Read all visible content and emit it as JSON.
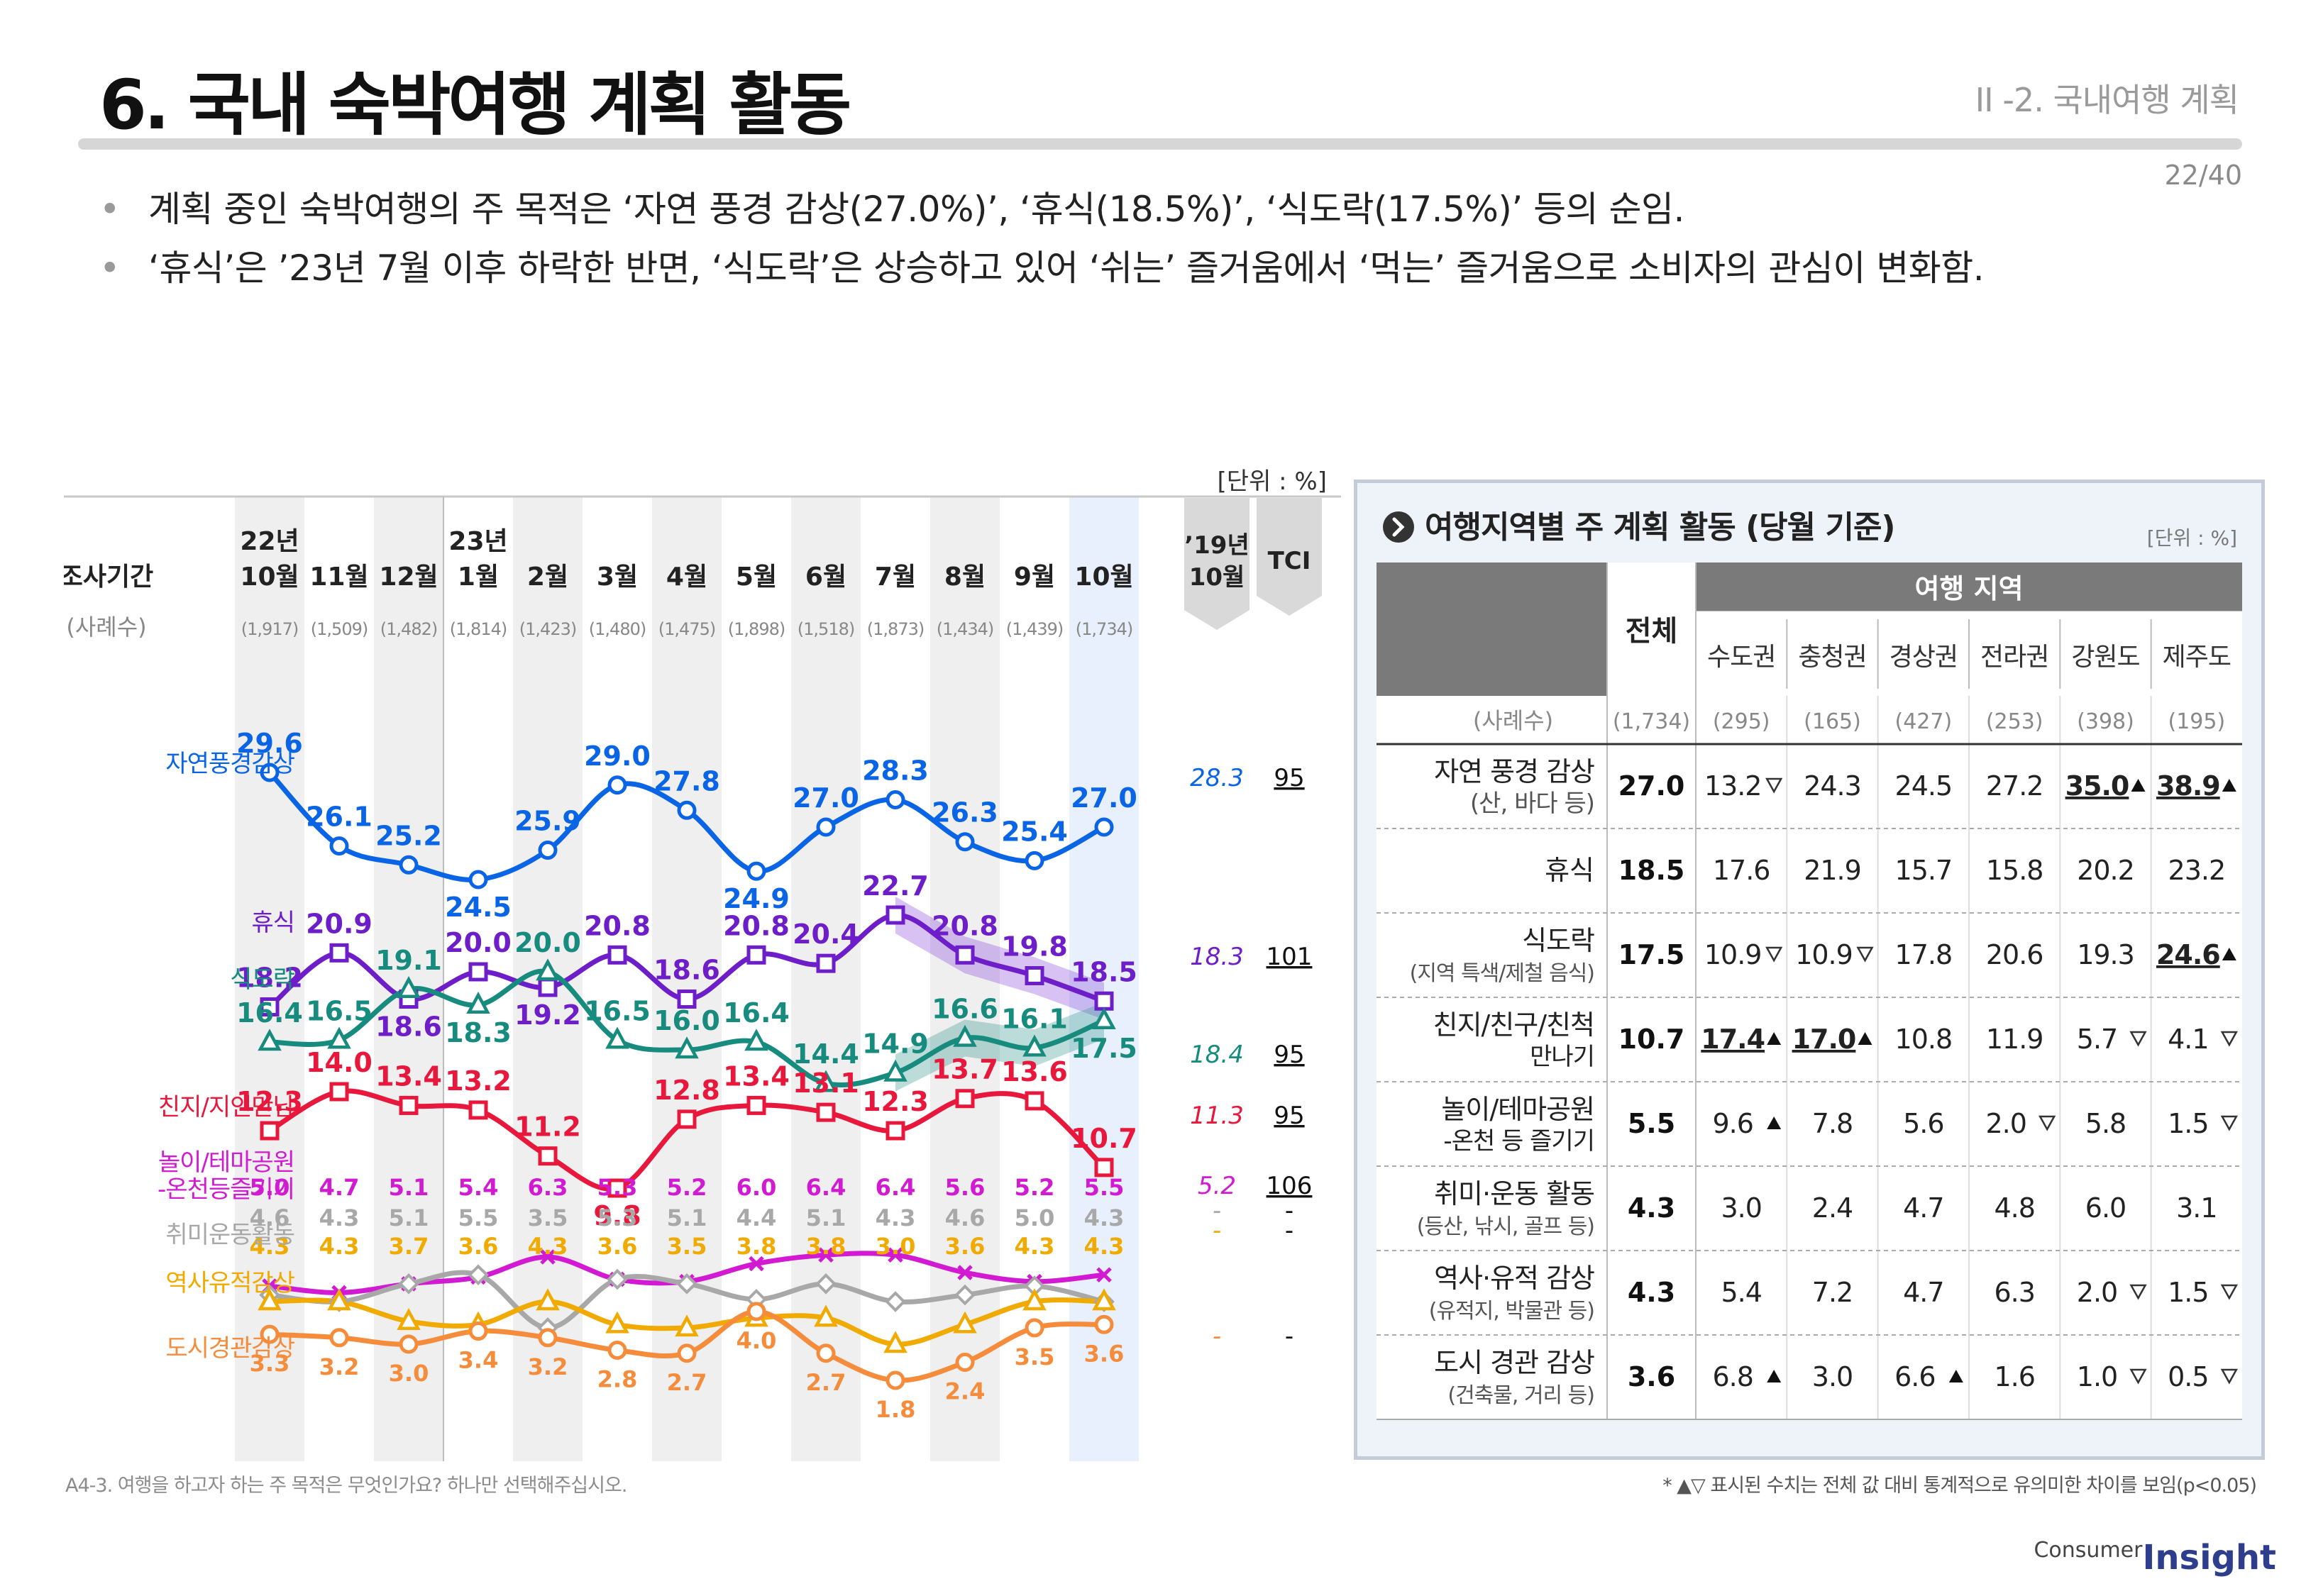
{
  "header": {
    "title": "6. 국내 숙박여행 계획 활동",
    "section": "II -2. 국내여행 계획",
    "page": "22/40"
  },
  "bullets": [
    "계획 중인 숙박여행의 주 목적은 ‘자연 풍경 감상(27.0%)’, ‘휴식(18.5%)’, ‘식도락(17.5%)’ 등의 순임.",
    "‘휴식’은 ’23년 7월 이후 하락한 반면, ‘식도락’은 상승하고 있어 ‘쉬는’ 즐거움에서 ‘먹는’ 즐거움으로 소비자의 관심이 변화함."
  ],
  "chart_data": [
    {
      "type": "line",
      "unit": "[단위 : %]",
      "period_label": "조사기간",
      "sample_label": "(사례수)",
      "categories": [
        {
          "year": "22년",
          "month": "10월",
          "n": "(1,917)"
        },
        {
          "year": "",
          "month": "11월",
          "n": "(1,509)"
        },
        {
          "year": "",
          "month": "12월",
          "n": "(1,482)"
        },
        {
          "year": "23년",
          "month": "1월",
          "n": "(1,814)"
        },
        {
          "year": "",
          "month": "2월",
          "n": "(1,423)"
        },
        {
          "year": "",
          "month": "3월",
          "n": "(1,480)"
        },
        {
          "year": "",
          "month": "4월",
          "n": "(1,475)"
        },
        {
          "year": "",
          "month": "5월",
          "n": "(1,898)"
        },
        {
          "year": "",
          "month": "6월",
          "n": "(1,518)"
        },
        {
          "year": "",
          "month": "7월",
          "n": "(1,873)"
        },
        {
          "year": "",
          "month": "8월",
          "n": "(1,434)"
        },
        {
          "year": "",
          "month": "9월",
          "n": "(1,439)"
        },
        {
          "year": "",
          "month": "10월",
          "n": "(1,734)"
        }
      ],
      "ref_col": {
        "line1": "’19년",
        "line2": "10월"
      },
      "tci_label": "TCI",
      "series": [
        {
          "name": "자연풍경감상",
          "color": "#0a64e6",
          "marker": "circle",
          "values": [
            29.6,
            26.1,
            25.2,
            24.5,
            25.9,
            29.0,
            27.8,
            24.9,
            27.0,
            28.3,
            26.3,
            25.4,
            27.0
          ],
          "ref": "28.3",
          "tci": "95"
        },
        {
          "name": "휴식",
          "color": "#6e1ec8",
          "marker": "square",
          "values": [
            18.2,
            20.9,
            18.6,
            20.0,
            19.2,
            20.8,
            18.6,
            20.8,
            20.4,
            22.7,
            20.8,
            19.8,
            18.5
          ],
          "ref": "18.3",
          "tci": "101"
        },
        {
          "name": "식도락",
          "color": "#168b7e",
          "marker": "triangle",
          "values": [
            16.4,
            16.5,
            19.1,
            18.3,
            20.0,
            16.5,
            16.0,
            16.4,
            14.4,
            14.9,
            16.6,
            16.1,
            17.5
          ],
          "ref": "18.4",
          "tci": "95"
        },
        {
          "name": "친지/지인만남",
          "color": "#e8183c",
          "marker": "square",
          "values": [
            12.3,
            14.0,
            13.4,
            13.2,
            11.2,
            9.8,
            12.8,
            13.4,
            13.1,
            12.3,
            13.7,
            13.6,
            10.7
          ],
          "ref": "11.3",
          "tci": "95"
        },
        {
          "name": "놀이/테마공원 -온천등즐기기",
          "color": "#d21ad2",
          "marker": "x",
          "values": [
            5.0,
            4.7,
            5.1,
            5.4,
            6.3,
            5.3,
            5.2,
            6.0,
            6.4,
            6.4,
            5.6,
            5.2,
            5.5
          ],
          "ref": "5.2",
          "tci": "106"
        },
        {
          "name": "취미운동활동",
          "color": "#a8a8a8",
          "marker": "diamond",
          "values": [
            4.6,
            4.3,
            5.1,
            5.5,
            3.5,
            5.3,
            5.1,
            4.4,
            5.1,
            4.3,
            4.6,
            5.0,
            4.3
          ],
          "ref": "-",
          "tci": "-"
        },
        {
          "name": "역사유적감상",
          "color": "#f0aa00",
          "marker": "triangle",
          "values": [
            4.3,
            4.3,
            3.7,
            3.6,
            4.3,
            3.6,
            3.5,
            3.8,
            3.8,
            3.0,
            3.6,
            4.3,
            4.3
          ],
          "ref": "-",
          "tci": "-"
        },
        {
          "name": "도시경관감상",
          "color": "#f58c3c",
          "marker": "circle",
          "values": [
            3.3,
            3.2,
            3.0,
            3.4,
            3.2,
            2.8,
            2.7,
            4.0,
            2.7,
            1.8,
            2.4,
            3.5,
            3.6
          ],
          "ref": "-",
          "tci": "-"
        }
      ]
    },
    {
      "type": "table",
      "title": "여행지역별 주 계획 활동 (당월 기준)",
      "unit": "[단위 : %]",
      "total_header": "전체",
      "group_header": "여행 지역",
      "regions": [
        "수도권",
        "충청권",
        "경상권",
        "전라권",
        "강원도",
        "제주도"
      ],
      "sample_row": {
        "label": "(사례수)",
        "total": "(1,734)",
        "values": [
          "(295)",
          "(165)",
          "(427)",
          "(253)",
          "(398)",
          "(195)"
        ]
      },
      "rows": [
        {
          "label": "자연 풍경 감상",
          "sub": "(산, 바다 등)",
          "total": "27.0",
          "values": [
            "13.2",
            "24.3",
            "24.5",
            "27.2",
            "35.0",
            "38.9"
          ],
          "marks": [
            "down",
            "",
            "",
            "",
            "up",
            "up"
          ]
        },
        {
          "label": "휴식",
          "sub": "",
          "total": "18.5",
          "values": [
            "17.6",
            "21.9",
            "15.7",
            "15.8",
            "20.2",
            "23.2"
          ],
          "marks": [
            "",
            "",
            "",
            "",
            "",
            ""
          ]
        },
        {
          "label": "식도락",
          "sub": "(지역 특색/제철 음식)",
          "total": "17.5",
          "values": [
            "10.9",
            "10.9",
            "17.8",
            "20.6",
            "19.3",
            "24.6"
          ],
          "marks": [
            "down",
            "down",
            "",
            "",
            "",
            "up"
          ]
        },
        {
          "label": "친지/친구/친척",
          "sub": "만나기",
          "total": "10.7",
          "values": [
            "17.4",
            "17.0",
            "10.8",
            "11.9",
            "5.7",
            "4.1"
          ],
          "marks": [
            "up",
            "up",
            "",
            "",
            "down",
            "down"
          ]
        },
        {
          "label": "놀이/테마공원",
          "sub": "-온천 등 즐기기",
          "total": "5.5",
          "values": [
            "9.6",
            "7.8",
            "5.6",
            "2.0",
            "5.8",
            "1.5"
          ],
          "marks": [
            "up",
            "",
            "",
            "down",
            "",
            "down"
          ]
        },
        {
          "label": "취미·운동 활동",
          "sub": "(등산, 낚시, 골프 등)",
          "total": "4.3",
          "values": [
            "3.0",
            "2.4",
            "4.7",
            "4.8",
            "6.0",
            "3.1"
          ],
          "marks": [
            "",
            "",
            "",
            "",
            "",
            ""
          ]
        },
        {
          "label": "역사·유적 감상",
          "sub": "(유적지, 박물관 등)",
          "total": "4.3",
          "values": [
            "5.4",
            "7.2",
            "4.7",
            "6.3",
            "2.0",
            "1.5"
          ],
          "marks": [
            "",
            "",
            "",
            "",
            "down",
            "down"
          ]
        },
        {
          "label": "도시 경관 감상",
          "sub": "(건축물, 거리 등)",
          "total": "3.6",
          "values": [
            "6.8",
            "3.0",
            "6.6",
            "1.6",
            "1.0",
            "0.5"
          ],
          "marks": [
            "up",
            "",
            "up",
            "",
            "down",
            "down"
          ]
        }
      ]
    }
  ],
  "footnotes": {
    "left": "A4-3. 여행을 하고자 하는 주 목적은 무엇인가요? 하나만 선택해주십시오.",
    "right": "* ▲▽ 표시된 수치는 전체 값 대비 통계적으로 유의미한 차이를 보임(p<0.05)"
  },
  "brand": {
    "small": "Consumer",
    "large": "Insight"
  }
}
